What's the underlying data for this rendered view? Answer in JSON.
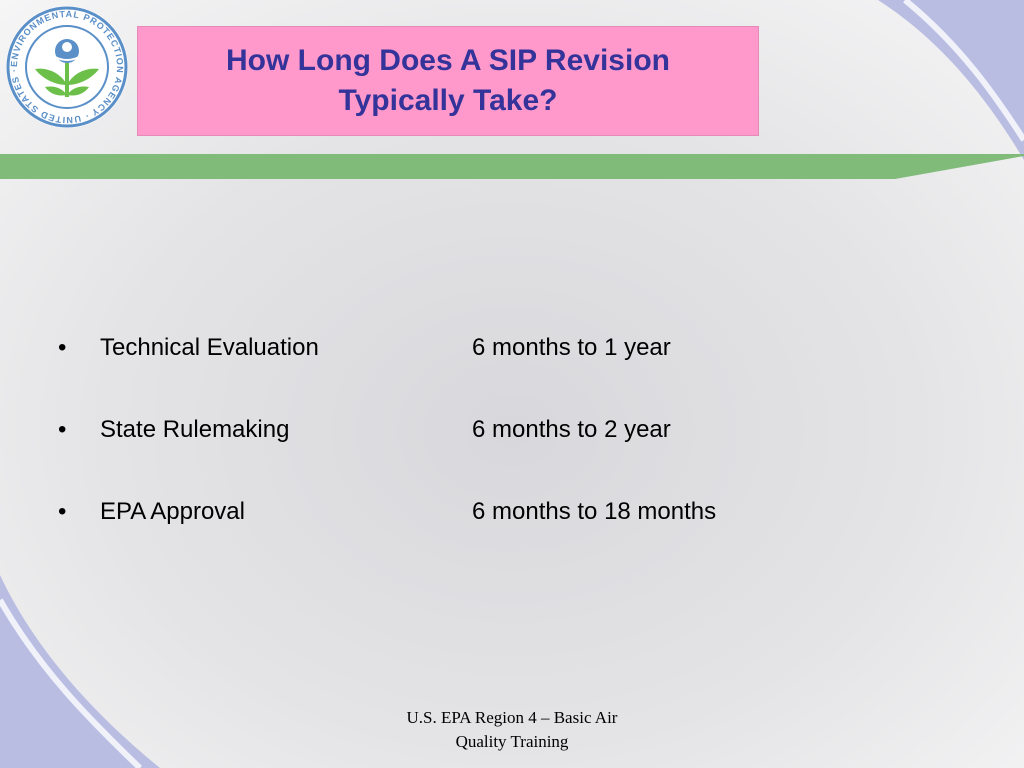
{
  "title": "How Long Does A SIP Revision\nTypically Take?",
  "logo": {
    "seal_text_top": "UNITED STATES",
    "seal_text_left": "ENVIRONMENTAL",
    "seal_text_bottom": "PROTECTION AGENCY",
    "icon": "epa-seal-icon"
  },
  "bullets": [
    {
      "marker": "•",
      "label": "Technical Evaluation",
      "duration": "6 months to 1 year"
    },
    {
      "marker": "•",
      "label": "State Rulemaking",
      "duration": "6 months to 2 year"
    },
    {
      "marker": "•",
      "label": "EPA Approval",
      "duration": "6 months to 18 months"
    }
  ],
  "footer": "U.S. EPA Region 4 – Basic Air\nQuality Training",
  "colors": {
    "title_bg": "#ff99cc",
    "title_text": "#33339a",
    "green_band": "#80bb7a",
    "lavender": "#b9bde2",
    "seal_blue": "#5a8fc8",
    "seal_green": "#6cc04a"
  }
}
